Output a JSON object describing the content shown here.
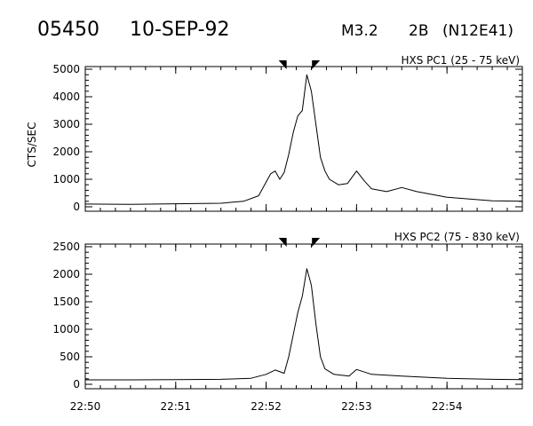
{
  "header": {
    "event_id": "05450",
    "date": "10-SEP-92",
    "goes_class": "M3.2",
    "optical_class": "2B",
    "location": "(N12E41)"
  },
  "chart_data": [
    {
      "type": "line",
      "title": "HXS PC1 (25 - 75 keV)",
      "ylabel": "CTS/SEC",
      "xlabel": "",
      "xlim": [
        "22:50",
        "22:54:50"
      ],
      "ylim": [
        0,
        5000
      ],
      "yticks": [
        0,
        1000,
        2000,
        3000,
        4000,
        5000
      ],
      "xticks": [
        "22:50",
        "22:51",
        "22:52",
        "22:53",
        "22:54"
      ],
      "markers": [
        "22:52:13",
        "22:52:31"
      ],
      "series": [
        {
          "values": [
            [
              "22:50:00",
              100
            ],
            [
              "22:50:30",
              90
            ],
            [
              "22:51:00",
              110
            ],
            [
              "22:51:30",
              130
            ],
            [
              "22:51:45",
              200
            ],
            [
              "22:51:55",
              400
            ],
            [
              "22:52:00",
              900
            ],
            [
              "22:52:03",
              1200
            ],
            [
              "22:52:06",
              1300
            ],
            [
              "22:52:09",
              1000
            ],
            [
              "22:52:12",
              1250
            ],
            [
              "22:52:15",
              1900
            ],
            [
              "22:52:18",
              2700
            ],
            [
              "22:52:21",
              3300
            ],
            [
              "22:52:24",
              3500
            ],
            [
              "22:52:27",
              4800
            ],
            [
              "22:52:30",
              4200
            ],
            [
              "22:52:33",
              3000
            ],
            [
              "22:52:36",
              1800
            ],
            [
              "22:52:39",
              1300
            ],
            [
              "22:52:42",
              1000
            ],
            [
              "22:52:48",
              800
            ],
            [
              "22:52:54",
              850
            ],
            [
              "22:53:00",
              1300
            ],
            [
              "22:53:05",
              950
            ],
            [
              "22:53:10",
              650
            ],
            [
              "22:53:20",
              550
            ],
            [
              "22:53:30",
              700
            ],
            [
              "22:53:40",
              550
            ],
            [
              "22:54:00",
              350
            ],
            [
              "22:54:30",
              220
            ],
            [
              "22:54:50",
              200
            ]
          ]
        }
      ]
    },
    {
      "type": "line",
      "title": "HXS PC2 (75 - 830 keV)",
      "ylabel": "",
      "xlabel": "",
      "xlim": [
        "22:50",
        "22:54:50"
      ],
      "ylim": [
        0,
        2500
      ],
      "yticks": [
        0,
        500,
        1000,
        1500,
        2000,
        2500
      ],
      "xticks": [
        "22:50",
        "22:51",
        "22:52",
        "22:53",
        "22:54"
      ],
      "markers": [
        "22:52:13",
        "22:52:31"
      ],
      "series": [
        {
          "values": [
            [
              "22:50:00",
              80
            ],
            [
              "22:50:30",
              80
            ],
            [
              "22:51:00",
              85
            ],
            [
              "22:51:30",
              90
            ],
            [
              "22:51:50",
              110
            ],
            [
              "22:52:00",
              180
            ],
            [
              "22:52:06",
              260
            ],
            [
              "22:52:12",
              200
            ],
            [
              "22:52:15",
              500
            ],
            [
              "22:52:18",
              900
            ],
            [
              "22:52:21",
              1300
            ],
            [
              "22:52:24",
              1600
            ],
            [
              "22:52:27",
              2100
            ],
            [
              "22:52:30",
              1800
            ],
            [
              "22:52:33",
              1100
            ],
            [
              "22:52:36",
              500
            ],
            [
              "22:52:39",
              280
            ],
            [
              "22:52:45",
              180
            ],
            [
              "22:52:55",
              150
            ],
            [
              "22:53:00",
              270
            ],
            [
              "22:53:10",
              180
            ],
            [
              "22:53:30",
              150
            ],
            [
              "22:54:00",
              110
            ],
            [
              "22:54:30",
              90
            ],
            [
              "22:54:50",
              85
            ]
          ]
        }
      ]
    }
  ]
}
